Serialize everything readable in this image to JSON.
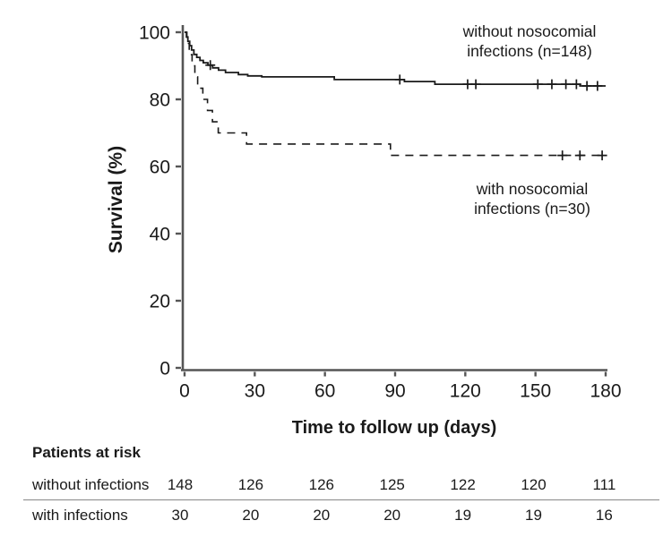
{
  "chart_data": {
    "type": "line",
    "subtype": "kaplan-meier-step",
    "title": "",
    "xlabel": "Time to follow up (days)",
    "ylabel": "Survival (%)",
    "xlim": [
      0,
      180
    ],
    "ylim": [
      0,
      100
    ],
    "xticks": [
      0,
      30,
      60,
      90,
      120,
      150,
      180
    ],
    "yticks": [
      100,
      80,
      60,
      40,
      20,
      0
    ],
    "grid": false,
    "legend_position": "inside-right",
    "series": [
      {
        "name": "without nosocomial infections (n=148)",
        "legend_lines": [
          "without nosocomial",
          "infections (n=148)"
        ],
        "line_style": "solid",
        "color": "#1a1a1a",
        "steps": [
          [
            0,
            100
          ],
          [
            0.8,
            98.6
          ],
          [
            1.4,
            97.3
          ],
          [
            2.2,
            96.0
          ],
          [
            3,
            94.7
          ],
          [
            4,
            93.4
          ],
          [
            5.2,
            92.5
          ],
          [
            6.6,
            91.6
          ],
          [
            8,
            90.9
          ],
          [
            10,
            90.2
          ],
          [
            12,
            89.4
          ],
          [
            14.5,
            88.7
          ],
          [
            17.5,
            88.0
          ],
          [
            23,
            87.4
          ],
          [
            27,
            87.0
          ],
          [
            33,
            86.7
          ],
          [
            64,
            85.9
          ],
          [
            94,
            85.3
          ],
          [
            107,
            84.5
          ],
          [
            169,
            84.0
          ],
          [
            180,
            84.0
          ]
        ],
        "censor_marks": [
          [
            11,
            90.2
          ],
          [
            92,
            85.9
          ],
          [
            121,
            84.5
          ],
          [
            124.5,
            84.5
          ],
          [
            151,
            84.5
          ],
          [
            157,
            84.5
          ],
          [
            163,
            84.5
          ],
          [
            167.5,
            84.5
          ],
          [
            172,
            84.0
          ],
          [
            176.5,
            84.0
          ]
        ]
      },
      {
        "name": "with nosocomial infections (n=30)",
        "legend_lines": [
          "with nosocomial",
          "infections (n=30)"
        ],
        "line_style": "dashed",
        "color": "#1a1a1a",
        "steps": [
          [
            0,
            100
          ],
          [
            1,
            96.7
          ],
          [
            2,
            93.3
          ],
          [
            3.2,
            90.0
          ],
          [
            4.4,
            86.7
          ],
          [
            5.6,
            83.3
          ],
          [
            7.8,
            80.0
          ],
          [
            9.8,
            76.7
          ],
          [
            11.9,
            73.3
          ],
          [
            14.4,
            70.0
          ],
          [
            26.5,
            66.7
          ],
          [
            88,
            63.3
          ],
          [
            180,
            63.3
          ]
        ],
        "censor_marks": [
          [
            161.5,
            63.3
          ],
          [
            169,
            63.3
          ],
          [
            178.5,
            63.3
          ]
        ]
      }
    ]
  },
  "risk_table": {
    "title": "Patients at risk",
    "rows": [
      {
        "label": "without infections",
        "values": [
          "148",
          "126",
          "126",
          "125",
          "122",
          "120",
          "111"
        ]
      },
      {
        "label": "with infections",
        "values": [
          "30",
          "20",
          "20",
          "20",
          "19",
          "19",
          "16"
        ]
      }
    ]
  },
  "colors": {
    "ink": "#1a1a1a",
    "axis": "#555555",
    "rule": "#888888",
    "background": "#ffffff"
  }
}
